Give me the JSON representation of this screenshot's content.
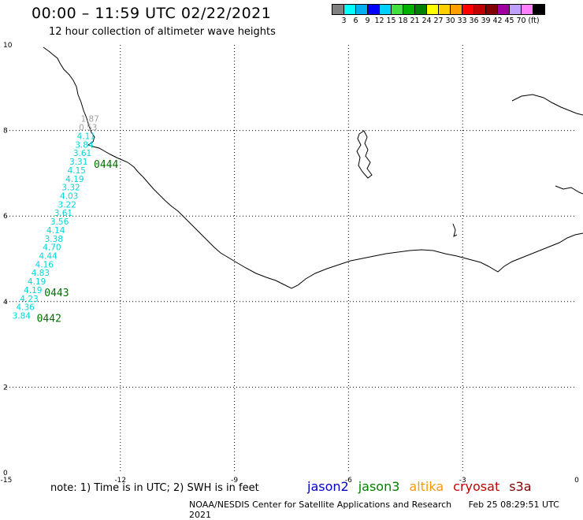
{
  "header": {
    "title": "00:00 – 11:59 UTC 02/22/2021",
    "subtitle": "12 hour collection of altimeter wave heights"
  },
  "scale": {
    "colors": [
      "#808080",
      "#00ffff",
      "#00b0f0",
      "#0000ff",
      "#00d0ff",
      "#40e040",
      "#00b000",
      "#008000",
      "#ffff00",
      "#ffd000",
      "#ffa000",
      "#ff0000",
      "#c00000",
      "#800000",
      "#a000a0",
      "#c0a0ff",
      "#ff80ff",
      "#000000"
    ],
    "labels": [
      "3",
      "6",
      "9",
      "12",
      "15",
      "18",
      "21",
      "24",
      "27",
      "30",
      "33",
      "36",
      "39",
      "42",
      "45",
      "70"
    ],
    "unit": "(ft)"
  },
  "axes": {
    "x_ticks": [
      "-15",
      "-12",
      "-9",
      "-6",
      "-3",
      "0"
    ],
    "y_ticks": [
      "0",
      "2",
      "4",
      "6",
      "8",
      "10"
    ],
    "xlim": [
      -15,
      0
    ],
    "ylim": [
      0,
      10
    ]
  },
  "observations": {
    "color_cyan": "#00d8d8",
    "color_gray": "#a0a0a0",
    "points": [
      {
        "label": "3.84",
        "lon": -14.6,
        "lat": 3.6
      },
      {
        "label": "4.36",
        "lon": -14.5,
        "lat": 3.8
      },
      {
        "label": "4.23",
        "lon": -14.4,
        "lat": 4.0
      },
      {
        "label": "4.19",
        "lon": -14.3,
        "lat": 4.2
      },
      {
        "label": "4.19",
        "lon": -14.2,
        "lat": 4.4
      },
      {
        "label": "4.83",
        "lon": -14.1,
        "lat": 4.6
      },
      {
        "label": "4.16",
        "lon": -14.0,
        "lat": 4.8
      },
      {
        "label": "4.44",
        "lon": -13.9,
        "lat": 5.0
      },
      {
        "label": "4.70",
        "lon": -13.8,
        "lat": 5.2
      },
      {
        "label": "3.38",
        "lon": -13.75,
        "lat": 5.4
      },
      {
        "label": "4.14",
        "lon": -13.7,
        "lat": 5.6
      },
      {
        "label": "3.56",
        "lon": -13.6,
        "lat": 5.8
      },
      {
        "label": "3.61",
        "lon": -13.5,
        "lat": 6.0
      },
      {
        "label": "3.22",
        "lon": -13.4,
        "lat": 6.2
      },
      {
        "label": "4.03",
        "lon": -13.35,
        "lat": 6.4
      },
      {
        "label": "3.32",
        "lon": -13.3,
        "lat": 6.6
      },
      {
        "label": "4.19",
        "lon": -13.2,
        "lat": 6.8
      },
      {
        "label": "4.15",
        "lon": -13.15,
        "lat": 7.0
      },
      {
        "label": "3.31",
        "lon": -13.1,
        "lat": 7.2
      },
      {
        "label": "3.61",
        "lon": -13.0,
        "lat": 7.4
      },
      {
        "label": "3.84",
        "lon": -12.95,
        "lat": 7.6
      },
      {
        "label": "4.11",
        "lon": -12.9,
        "lat": 7.8
      },
      {
        "label": "0.53",
        "lon": -12.85,
        "lat": 8.0,
        "gray": true
      },
      {
        "label": "1.87",
        "lon": -12.8,
        "lat": 8.2,
        "gray": true
      }
    ]
  },
  "time_labels": {
    "color": "#007000",
    "items": [
      {
        "label": "0444",
        "lon": -12.7,
        "lat": 7.2
      },
      {
        "label": "0443",
        "lon": -14.0,
        "lat": 4.2
      },
      {
        "label": "0442",
        "lon": -14.2,
        "lat": 3.6
      }
    ]
  },
  "note": "note: 1) Time is in UTC; 2) SWH is in feet",
  "legend": [
    {
      "label": "jason2",
      "color": "#0000c8"
    },
    {
      "label": "jason3",
      "color": "#008000"
    },
    {
      "label": "altika",
      "color": "#ff9900"
    },
    {
      "label": "cryosat",
      "color": "#c00000"
    },
    {
      "label": "s3a",
      "color": "#800000"
    }
  ],
  "footer": {
    "credit": "NOAA/NESDIS Center for Satellite Applications and Research",
    "timestamp": "Feb 25 08:29:51 UTC 2021"
  }
}
